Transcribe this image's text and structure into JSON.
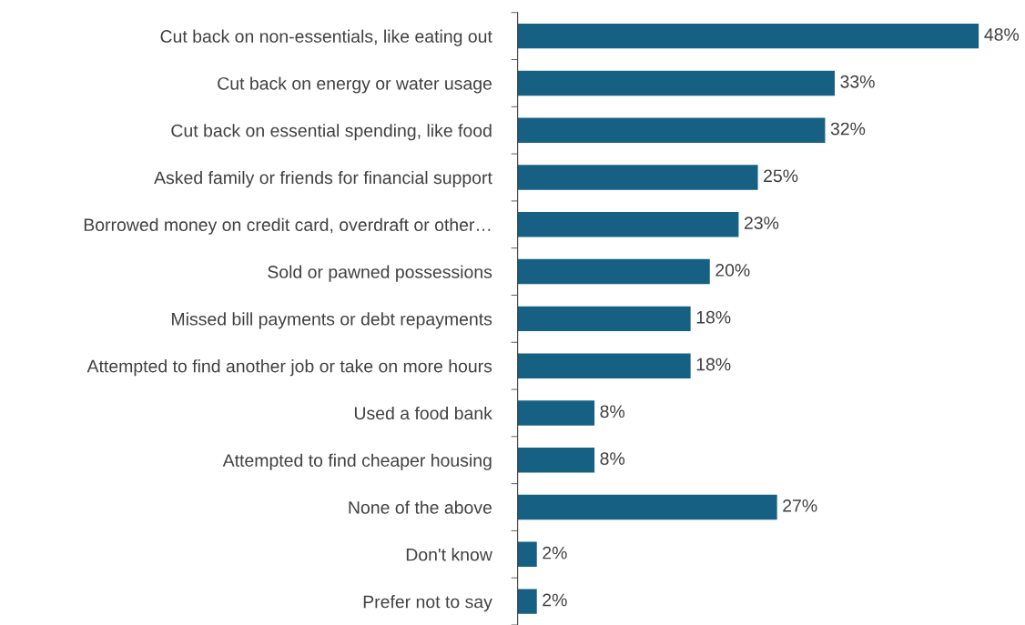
{
  "chart_data": {
    "type": "bar",
    "orientation": "horizontal",
    "color": "#166083",
    "categories": [
      "Cut back on non-essentials, like eating out",
      "Cut back on energy or water usage",
      "Cut back on essential spending, like food",
      "Asked family or friends for financial support",
      "Borrowed money on credit card, overdraft or other…",
      "Sold or pawned possessions",
      "Missed bill payments or debt repayments",
      "Attempted to find another job or take on more hours",
      "Used a food bank",
      "Attempted to find cheaper housing",
      "None of the above",
      "Don't know",
      "Prefer not to say"
    ],
    "values": [
      48,
      33,
      32,
      25,
      23,
      20,
      18,
      18,
      8,
      8,
      27,
      2,
      2
    ],
    "value_labels": [
      "48%",
      "33%",
      "32%",
      "25%",
      "23%",
      "20%",
      "18%",
      "18%",
      "8%",
      "8%",
      "27%",
      "2%",
      "2%"
    ],
    "grid": false,
    "legend": false
  }
}
